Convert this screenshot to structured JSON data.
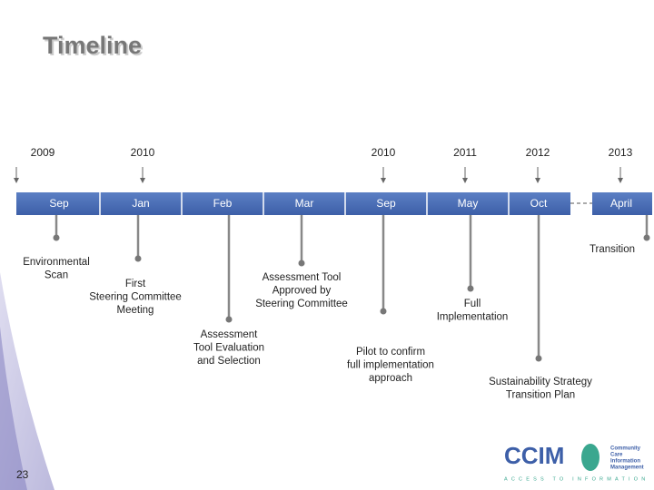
{
  "title": "Timeline",
  "years": [
    "2009",
    "2010",
    "2010",
    "2011",
    "2012",
    "2013"
  ],
  "months": [
    "Sep",
    "Jan",
    "Feb",
    "Mar",
    "Sep",
    "May",
    "Oct",
    "April"
  ],
  "milestones": [
    {
      "lines": [
        "Environmental",
        "Scan"
      ]
    },
    {
      "lines": [
        "First",
        "Steering Committee",
        "Meeting"
      ]
    },
    {
      "lines": [
        "Assessment",
        "Tool Evaluation",
        "and Selection"
      ]
    },
    {
      "lines": [
        "Assessment Tool",
        "Approved by",
        "Steering Committee"
      ]
    },
    {
      "lines": [
        "Pilot to confirm",
        "full implementation",
        "approach"
      ]
    },
    {
      "lines": [
        "Full",
        "Implementation"
      ]
    },
    {
      "lines": [
        "Sustainability Strategy",
        "Transition Plan"
      ]
    },
    {
      "lines": [
        "Transition"
      ]
    }
  ],
  "page_number": "23",
  "logo": {
    "name": "CCIM",
    "org": [
      "Community",
      "Care",
      "Information",
      "Management"
    ],
    "tagline": "ACCESS TO INFORMATION"
  }
}
